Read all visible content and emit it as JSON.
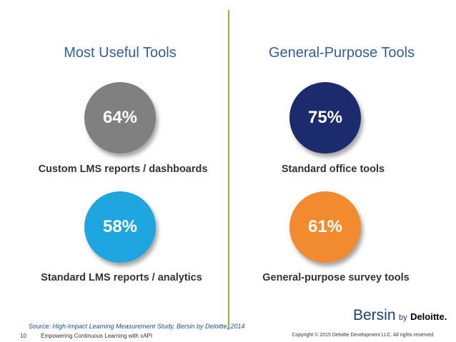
{
  "panels": [
    {
      "title": "Most Useful Tools",
      "items": [
        {
          "value": "64%",
          "label": "Custom LMS reports / dashboards"
        },
        {
          "value": "58%",
          "label": "Standard LMS reports / analytics"
        }
      ]
    },
    {
      "title": "General-Purpose Tools",
      "items": [
        {
          "value": "75%",
          "label": "Standard office tools"
        },
        {
          "value": "61%",
          "label": "General-purpose survey tools"
        }
      ]
    }
  ],
  "footer": {
    "source_prefix": "Source:",
    "source_title": "High-Impact Learning Measurement Study, Bersin by Deloitte, 2014",
    "page": "10",
    "deck_title": "Empowering Continuous Learning with xAPI",
    "copyright": "Copyright © 2015 Deloitte Development LLC. All rights reserved."
  },
  "logo": {
    "brand": "Bersin",
    "by": "by",
    "company": "Deloitte."
  }
}
